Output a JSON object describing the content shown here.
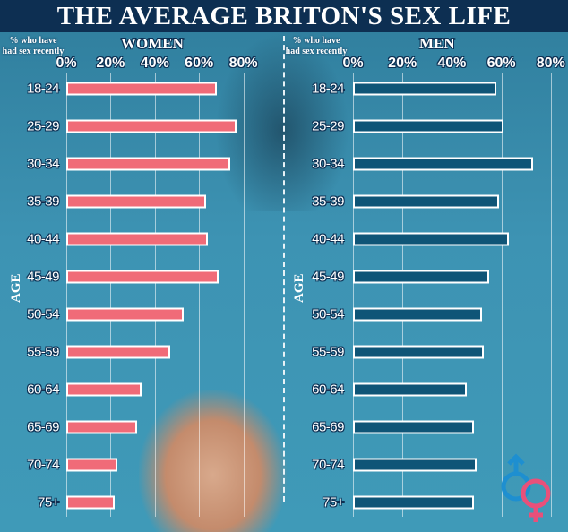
{
  "title": "THE AVERAGE BRITON'S SEX LIFE",
  "chart_data": [
    {
      "type": "bar",
      "orientation": "horizontal",
      "title": "WOMEN",
      "xlabel": "% who have had sex recently",
      "ylabel": "AGE",
      "xlim": [
        0,
        80
      ],
      "xticks": [
        "0%",
        "20%",
        "40%",
        "60%",
        "80%"
      ],
      "grid": true,
      "color": "#f06b78",
      "categories": [
        "18-24",
        "25-29",
        "30-34",
        "35-39",
        "40-44",
        "45-49",
        "50-54",
        "55-59",
        "60-64",
        "65-69",
        "70-74",
        "75+"
      ],
      "values": [
        68,
        77,
        74,
        63,
        64,
        69,
        53,
        47,
        34,
        32,
        23,
        22
      ]
    },
    {
      "type": "bar",
      "orientation": "horizontal",
      "title": "MEN",
      "xlabel": "% who have had sex recently",
      "ylabel": "AGE",
      "xlim": [
        0,
        80
      ],
      "xticks": [
        "0%",
        "20%",
        "40%",
        "60%",
        "80%"
      ],
      "grid": true,
      "color": "#0f5577",
      "categories": [
        "18-24",
        "25-29",
        "30-34",
        "35-39",
        "40-44",
        "45-49",
        "50-54",
        "55-59",
        "60-64",
        "65-69",
        "70-74",
        "75+"
      ],
      "values": [
        58,
        61,
        73,
        59,
        63,
        55,
        52,
        53,
        46,
        49,
        50,
        49
      ]
    }
  ],
  "colors": {
    "title_bar": "#0d2f52",
    "male_symbol": "#1e8fd0",
    "female_symbol": "#e8507a"
  },
  "icons": [
    "male-symbol-icon",
    "female-symbol-icon"
  ]
}
